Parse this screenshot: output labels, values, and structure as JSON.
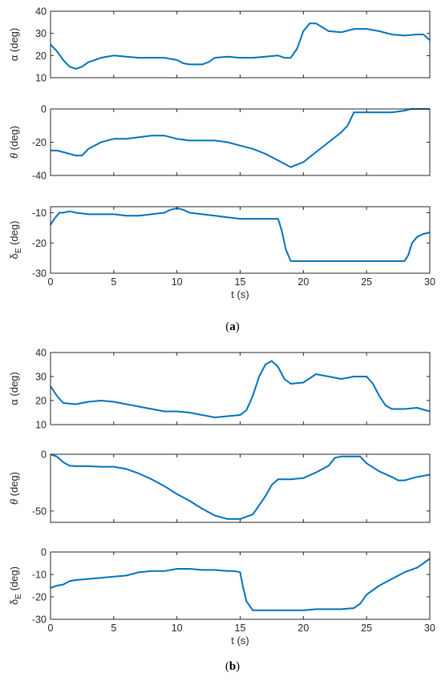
{
  "line_color": "#0072BD",
  "captions": [
    "a",
    "b"
  ],
  "chart_data": [
    {
      "type": "line",
      "panel": "a",
      "title": "",
      "ylabel": "α (deg)",
      "xlabel": "",
      "xlim": [
        0,
        30
      ],
      "ylim": [
        10,
        40
      ],
      "xticks": [],
      "yticks": [
        10,
        20,
        30,
        40
      ],
      "series": [
        {
          "x": [
            0,
            0.5,
            1,
            1.5,
            2,
            2.5,
            3,
            3.5,
            4,
            5,
            6,
            7,
            8,
            9,
            10,
            10.5,
            11,
            12,
            12.5,
            13,
            14,
            15,
            16,
            17,
            18,
            18.5,
            19,
            19.5,
            20,
            20.5,
            21,
            22,
            23,
            24,
            25,
            26,
            27,
            28,
            29,
            29.5,
            30
          ],
          "y": [
            25,
            22,
            18,
            15,
            14,
            15,
            17,
            18,
            19,
            20,
            19.5,
            19,
            19,
            19,
            18,
            16.5,
            16,
            16,
            17,
            19,
            19.5,
            19,
            19,
            19.5,
            20,
            19,
            19,
            23,
            31,
            34.5,
            34.5,
            31,
            30.5,
            32,
            32,
            31,
            29.5,
            29,
            29.5,
            29.5,
            27
          ]
        }
      ]
    },
    {
      "type": "line",
      "panel": "a",
      "title": "",
      "ylabel": "θ (deg)",
      "xlabel": "",
      "xlim": [
        0,
        30
      ],
      "ylim": [
        -40,
        0
      ],
      "xticks": [],
      "yticks": [
        -40,
        -20,
        0
      ],
      "series": [
        {
          "x": [
            0,
            0.5,
            1,
            1.5,
            2,
            2.5,
            3,
            4,
            5,
            6,
            7,
            8,
            9,
            10,
            11,
            12,
            13,
            14,
            15,
            16,
            17,
            18,
            19,
            20,
            21,
            22,
            23,
            23.5,
            24,
            25,
            26,
            27,
            28,
            28.5,
            29,
            30
          ],
          "y": [
            -25,
            -25,
            -26,
            -27,
            -28,
            -28,
            -24,
            -20,
            -18,
            -18,
            -17,
            -16,
            -16,
            -18,
            -19,
            -19,
            -19,
            -20,
            -22,
            -24,
            -27,
            -31,
            -35,
            -32,
            -26,
            -20,
            -14,
            -10,
            -2,
            -2,
            -2,
            -2,
            -1,
            0,
            0,
            0
          ]
        }
      ]
    },
    {
      "type": "line",
      "panel": "a",
      "title": "",
      "ylabel": "δE (deg)",
      "xlabel": "t (s)",
      "xlim": [
        0,
        30
      ],
      "ylim": [
        -30,
        -8
      ],
      "xticks": [
        0,
        5,
        10,
        15,
        20,
        25,
        30
      ],
      "yticks": [
        -30,
        -20,
        -10
      ],
      "series": [
        {
          "x": [
            0,
            0.3,
            0.7,
            1,
            1.5,
            2,
            3,
            4,
            5,
            6,
            7,
            8,
            9,
            9.5,
            10,
            10.5,
            11,
            12,
            13,
            14,
            15,
            16,
            17,
            17.5,
            18,
            18.3,
            18.6,
            19,
            20,
            21,
            22,
            23,
            24,
            25,
            26,
            27,
            28,
            28.3,
            28.6,
            29,
            29.5,
            30
          ],
          "y": [
            -14,
            -12,
            -10,
            -10,
            -9.5,
            -10,
            -10.5,
            -10.5,
            -10.5,
            -11,
            -11,
            -10.5,
            -10,
            -9,
            -8.5,
            -9,
            -10,
            -10.5,
            -11,
            -11.5,
            -12,
            -12,
            -12,
            -12,
            -12,
            -16,
            -22,
            -26,
            -26,
            -26,
            -26,
            -26,
            -26,
            -26,
            -26,
            -26,
            -26,
            -24,
            -20,
            -18,
            -17,
            -16.5
          ]
        }
      ]
    },
    {
      "type": "line",
      "panel": "b",
      "title": "",
      "ylabel": "α (deg)",
      "xlabel": "",
      "xlim": [
        0,
        30
      ],
      "ylim": [
        10,
        40
      ],
      "xticks": [],
      "yticks": [
        10,
        20,
        30,
        40
      ],
      "series": [
        {
          "x": [
            0,
            0.5,
            1,
            2,
            3,
            4,
            5,
            6,
            7,
            8,
            9,
            10,
            11,
            12,
            13,
            14,
            15,
            15.5,
            16,
            16.5,
            17,
            17.5,
            18,
            18.5,
            19,
            20,
            21,
            22,
            23,
            24,
            25,
            25.5,
            26,
            26.5,
            27,
            28,
            29,
            30
          ],
          "y": [
            26,
            22,
            19,
            18.5,
            19.5,
            20,
            19.5,
            18.5,
            17.5,
            16.5,
            15.5,
            15.5,
            15,
            14,
            13,
            13.5,
            14,
            16,
            22,
            30,
            35,
            36.5,
            34,
            29,
            27,
            27.5,
            31,
            30,
            29,
            30,
            30,
            27,
            22,
            18,
            16.5,
            16.5,
            17,
            15.5
          ]
        }
      ]
    },
    {
      "type": "line",
      "panel": "b",
      "title": "",
      "ylabel": "θ (deg)",
      "xlabel": "",
      "xlim": [
        0,
        30
      ],
      "ylim": [
        -60,
        0
      ],
      "xticks": [],
      "yticks": [
        -50,
        0
      ],
      "series": [
        {
          "x": [
            0,
            0.5,
            1,
            1.5,
            2,
            3,
            4,
            5,
            6,
            7,
            8,
            9,
            10,
            11,
            12,
            13,
            14,
            15,
            16,
            17,
            17.5,
            18,
            19,
            20,
            21,
            22,
            22.5,
            23,
            24,
            24.5,
            25,
            26,
            27,
            27.5,
            28,
            29,
            30
          ],
          "y": [
            0,
            -2,
            -7,
            -10,
            -10.5,
            -10.5,
            -11,
            -11,
            -13,
            -17,
            -22,
            -28,
            -35,
            -41,
            -48,
            -54,
            -57,
            -57,
            -53,
            -37,
            -27,
            -22,
            -22,
            -21,
            -16,
            -10,
            -3,
            -2,
            -2,
            -2,
            -8,
            -15,
            -20,
            -23,
            -23,
            -20,
            -18
          ]
        }
      ]
    },
    {
      "type": "line",
      "panel": "b",
      "title": "",
      "ylabel": "δE (deg)",
      "xlabel": "t (s)",
      "xlim": [
        0,
        30
      ],
      "ylim": [
        -30,
        0
      ],
      "xticks": [
        0,
        5,
        10,
        15,
        20,
        25,
        30
      ],
      "yticks": [
        -30,
        -20,
        -10,
        0
      ],
      "series": [
        {
          "x": [
            0,
            0.5,
            1,
            1.5,
            2,
            3,
            4,
            5,
            6,
            7,
            8,
            9,
            10,
            11,
            12,
            13,
            14,
            14.5,
            15,
            15.2,
            15.5,
            16,
            17,
            18,
            19,
            20,
            21,
            22,
            23,
            24,
            24.5,
            25,
            26,
            27,
            28,
            29,
            30
          ],
          "y": [
            -16,
            -15,
            -14.5,
            -13,
            -12.5,
            -12,
            -11.5,
            -11,
            -10.5,
            -9,
            -8.5,
            -8.5,
            -7.5,
            -7.5,
            -8,
            -8,
            -8.5,
            -8.5,
            -9,
            -15,
            -22,
            -26,
            -26,
            -26,
            -26,
            -26,
            -25.5,
            -25.5,
            -25.5,
            -25,
            -23,
            -19,
            -15,
            -12,
            -9,
            -7,
            -3
          ]
        }
      ]
    }
  ]
}
